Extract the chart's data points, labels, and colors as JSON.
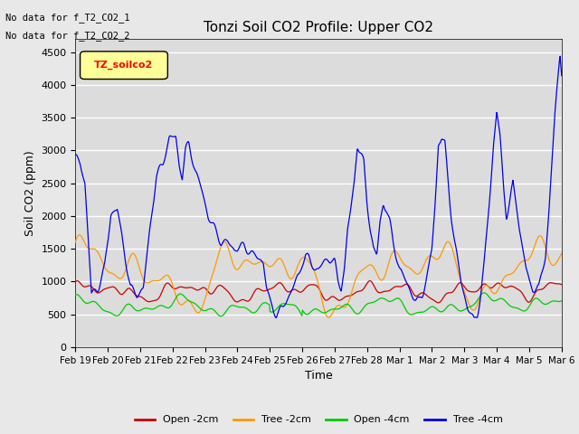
{
  "title": "Tonzi Soil CO2 Profile: Upper CO2",
  "ylabel": "Soil CO2 (ppm)",
  "xlabel": "Time",
  "ylim": [
    0,
    4700
  ],
  "yticks": [
    0,
    500,
    1000,
    1500,
    2000,
    2500,
    3000,
    3500,
    4000,
    4500
  ],
  "no_data_text": [
    "No data for f_T2_CO2_1",
    "No data for f_T2_CO2_2"
  ],
  "legend_label": "TZ_soilco2",
  "legend_bg": "#FFFF99",
  "background_color": "#E8E8E8",
  "plot_bg": "#DCDCDC",
  "grid_color": "#FFFFFF",
  "colors": {
    "open_2cm": "#CC0000",
    "tree_2cm": "#FF9900",
    "open_4cm": "#00CC00",
    "tree_4cm": "#0000EE"
  },
  "x_tick_labels": [
    "Feb 19",
    "Feb 20",
    "Feb 21",
    "Feb 22",
    "Feb 23",
    "Feb 24",
    "Feb 25",
    "Feb 26",
    "Feb 27",
    "Feb 28",
    "Mar 1",
    "Mar 2",
    "Mar 3",
    "Mar 4",
    "Mar 5",
    "Mar 6"
  ],
  "figsize": [
    6.4,
    4.8
  ],
  "dpi": 100
}
